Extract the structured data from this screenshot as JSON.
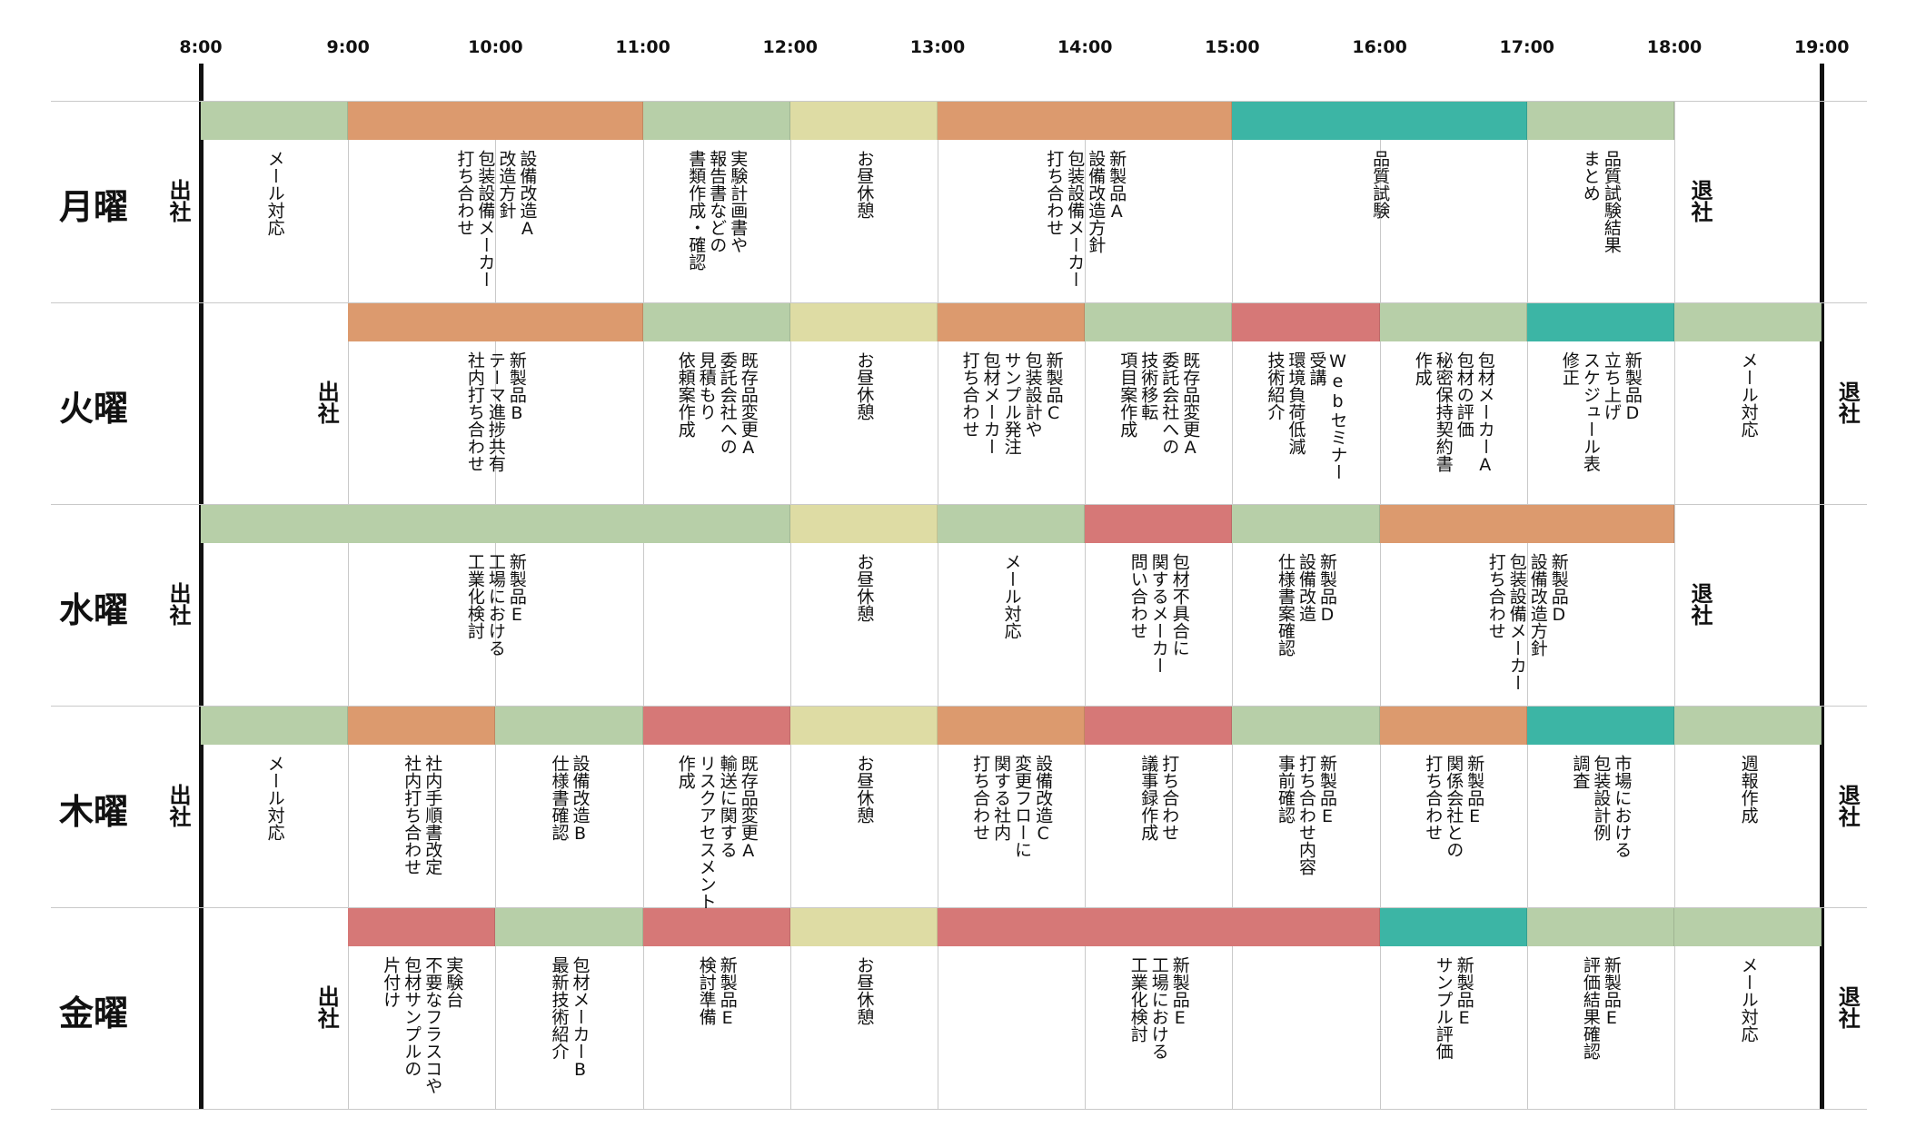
{
  "colors": {
    "green": "#b7cfa8",
    "orange": "#dc9a6e",
    "yellow": "#dedca4",
    "teal": "#3cb5a5",
    "red": "#d67877"
  },
  "hours": [
    "8:00",
    "9:00",
    "10:00",
    "11:00",
    "12:00",
    "13:00",
    "14:00",
    "15:00",
    "16:00",
    "17:00",
    "18:00",
    "19:00"
  ],
  "days": [
    {
      "name": "月曜",
      "in_label": "出社",
      "in_time": 8,
      "out_label": "退社",
      "out_time": 18,
      "blocks": [
        {
          "start": 8,
          "end": 9,
          "color": "green",
          "text": "メール対応"
        },
        {
          "start": 9,
          "end": 11,
          "color": "orange",
          "text": "設備改造A\n改造方針\n包装設備メーカー\n打ち合わせ"
        },
        {
          "start": 11,
          "end": 12,
          "color": "green",
          "text": "実験計画書や\n報告書などの\n書類作成・確認"
        },
        {
          "start": 12,
          "end": 13,
          "color": "yellow",
          "text": "お昼休憩"
        },
        {
          "start": 13,
          "end": 15,
          "color": "orange",
          "text": "新製品A\n設備改造方針\n包装設備メーカー\n打ち合わせ"
        },
        {
          "start": 15,
          "end": 17,
          "color": "teal",
          "text": "品質試験"
        },
        {
          "start": 17,
          "end": 18,
          "color": "green",
          "text": "品質試験結果\nまとめ"
        }
      ]
    },
    {
      "name": "火曜",
      "in_label": "出社",
      "in_time": 9,
      "out_label": "退社",
      "out_time": 19,
      "blocks": [
        {
          "start": 9,
          "end": 11,
          "color": "orange",
          "text": "新製品B\nテーマ進捗共有\n社内打ち合わせ"
        },
        {
          "start": 11,
          "end": 12,
          "color": "green",
          "text": "既存品変更A\n委託会社への\n見積もり\n依頼案作成"
        },
        {
          "start": 12,
          "end": 13,
          "color": "yellow",
          "text": "お昼休憩"
        },
        {
          "start": 13,
          "end": 14,
          "color": "orange",
          "text": "新製品C\n包装設計や\nサンプル発注\n包材メーカー\n打ち合わせ"
        },
        {
          "start": 14,
          "end": 15,
          "color": "green",
          "text": "既存品変更A\n委託会社への\n技術移転\n項目案作成"
        },
        {
          "start": 15,
          "end": 16,
          "color": "red",
          "text": "Webセミナー\n受講\n環境負荷低減\n技術紹介"
        },
        {
          "start": 16,
          "end": 17,
          "color": "green",
          "text": "包材メーカーA\n包材の評価\n秘密保持契約書\n作成"
        },
        {
          "start": 17,
          "end": 18,
          "color": "teal",
          "text": "新製品D\n立ち上げ\nスケジュール表\n修正"
        },
        {
          "start": 18,
          "end": 19,
          "color": "green",
          "text": "メール対応"
        }
      ]
    },
    {
      "name": "水曜",
      "in_label": "出社",
      "in_time": 8,
      "out_label": "退社",
      "out_time": 18,
      "blocks": [
        {
          "start": 8,
          "end": 12,
          "color": "green",
          "text": "新製品E\n工場における\n工業化検討"
        },
        {
          "start": 12,
          "end": 13,
          "color": "yellow",
          "text": "お昼休憩"
        },
        {
          "start": 13,
          "end": 14,
          "color": "green",
          "text": "メール対応"
        },
        {
          "start": 14,
          "end": 15,
          "color": "red",
          "text": "包材不具合に\n関するメーカー\n問い合わせ"
        },
        {
          "start": 15,
          "end": 16,
          "color": "green",
          "text": "新製品D\n設備改造\n仕様書案確認"
        },
        {
          "start": 16,
          "end": 18,
          "color": "orange",
          "text": "新製品D\n設備改造方針\n包装設備メーカー\n打ち合わせ"
        }
      ]
    },
    {
      "name": "木曜",
      "in_label": "出社",
      "in_time": 8,
      "out_label": "退社",
      "out_time": 19,
      "blocks": [
        {
          "start": 8,
          "end": 9,
          "color": "green",
          "text": "メール対応"
        },
        {
          "start": 9,
          "end": 10,
          "color": "orange",
          "text": "社内手順書改定\n社内打ち合わせ"
        },
        {
          "start": 10,
          "end": 11,
          "color": "green",
          "text": "設備改造B\n仕様書確認"
        },
        {
          "start": 11,
          "end": 12,
          "color": "red",
          "text": "既存品変更A\n輸送に関する\nリスクアセスメント\n作成"
        },
        {
          "start": 12,
          "end": 13,
          "color": "yellow",
          "text": "お昼休憩"
        },
        {
          "start": 13,
          "end": 14,
          "color": "orange",
          "text": "設備改造C\n変更フローに\n関する社内\n打ち合わせ"
        },
        {
          "start": 14,
          "end": 15,
          "color": "red",
          "text": "打ち合わせ\n議事録作成"
        },
        {
          "start": 15,
          "end": 16,
          "color": "green",
          "text": "新製品E\n打ち合わせ内容\n事前確認"
        },
        {
          "start": 16,
          "end": 17,
          "color": "orange",
          "text": "新製品E\n関係会社との\n打ち合わせ"
        },
        {
          "start": 17,
          "end": 18,
          "color": "teal",
          "text": "市場における\n包装設計例\n調査"
        },
        {
          "start": 18,
          "end": 19,
          "color": "green",
          "text": "週報作成"
        }
      ]
    },
    {
      "name": "金曜",
      "in_label": "出社",
      "in_time": 9,
      "out_label": "退社",
      "out_time": 19,
      "blocks": [
        {
          "start": 9,
          "end": 10,
          "color": "red",
          "text": "実験台\n不要なフラスコや\n包材サンプルの\n片付け"
        },
        {
          "start": 10,
          "end": 11,
          "color": "green",
          "text": "包材メーカーB\n最新技術紹介"
        },
        {
          "start": 11,
          "end": 12,
          "color": "red",
          "text": "新製品E\n検討準備"
        },
        {
          "start": 12,
          "end": 13,
          "color": "yellow",
          "text": "お昼休憩"
        },
        {
          "start": 13,
          "end": 16,
          "color": "red",
          "text": "新製品E\n工場における\n工業化検討"
        },
        {
          "start": 16,
          "end": 17,
          "color": "teal",
          "text": "新製品E\nサンプル評価"
        },
        {
          "start": 17,
          "end": 18,
          "color": "green",
          "text": "新製品E\n評価結果確認"
        },
        {
          "start": 18,
          "end": 19,
          "color": "green",
          "text": "メール対応"
        }
      ]
    }
  ]
}
